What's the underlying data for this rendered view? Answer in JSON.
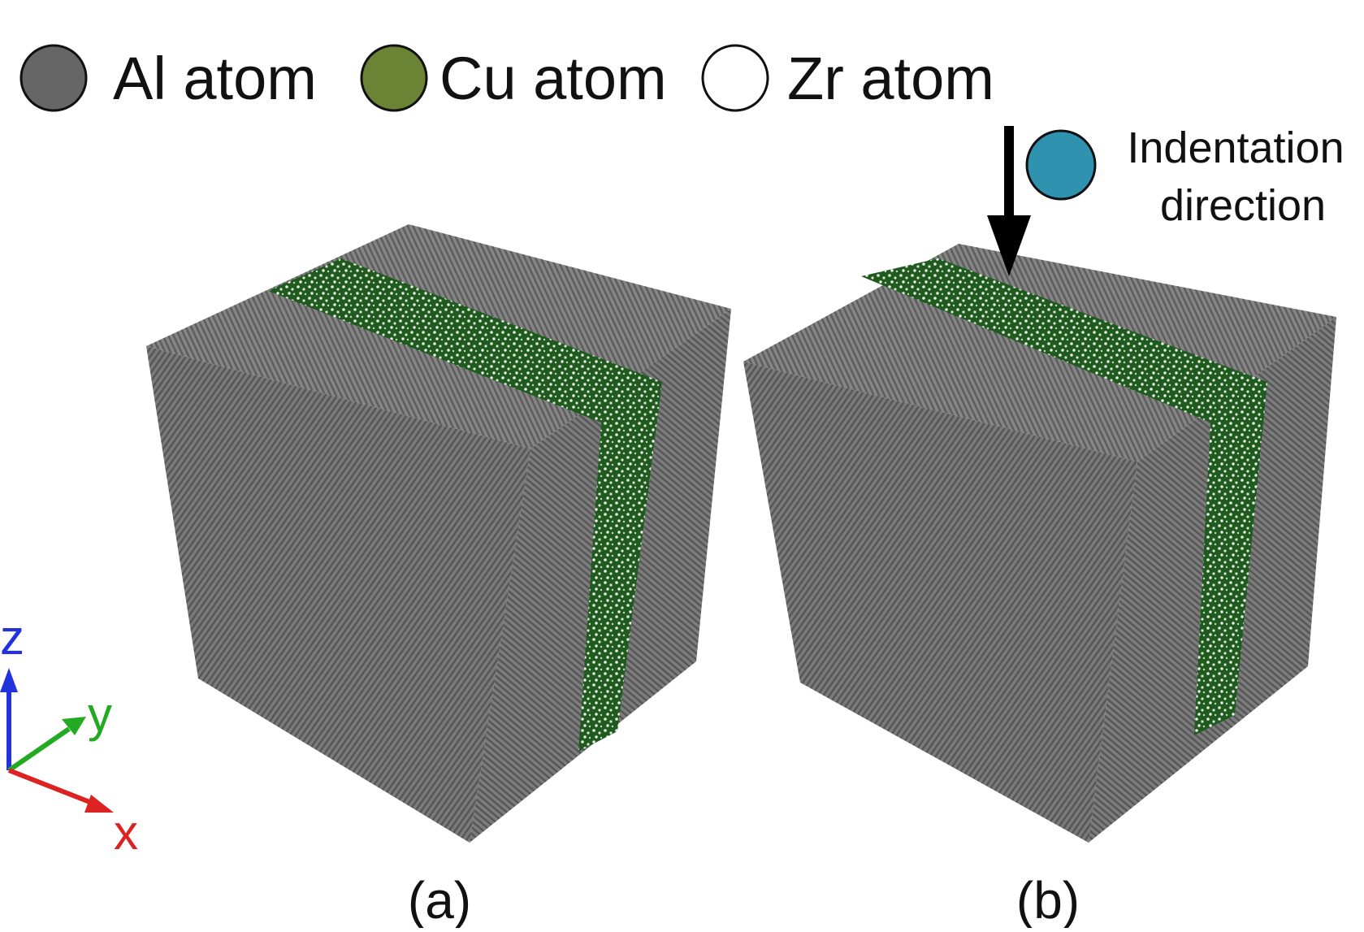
{
  "legend": [
    {
      "label": "Al atom"
    },
    {
      "label": "Cu atom"
    },
    {
      "label": "Zr atom"
    }
  ],
  "annotation": {
    "lines": [
      "Indentation",
      "direction"
    ]
  },
  "axes": {
    "z": "z",
    "y": "y",
    "x": "x"
  },
  "panels": [
    "(a)",
    "(b)"
  ]
}
